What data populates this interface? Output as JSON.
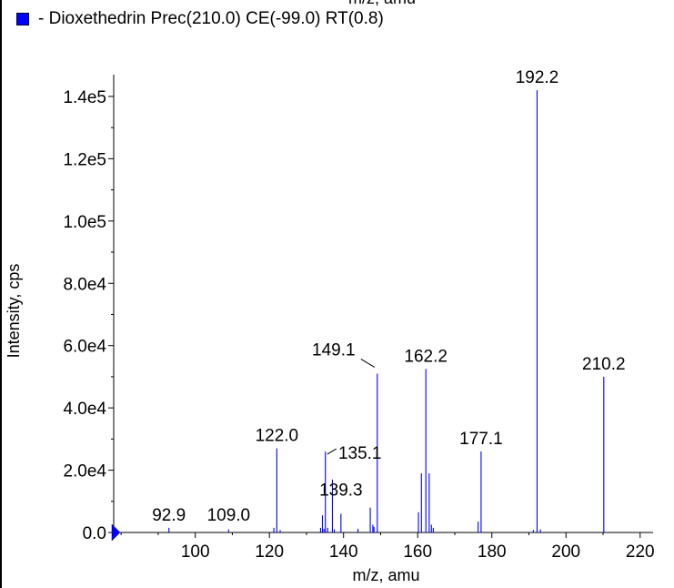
{
  "chart_data": {
    "type": "bar",
    "title": "",
    "legend": {
      "label": "- Dioxethedrin Prec(210.0) CE(-99.0) RT(0.8)",
      "color": "#0000ff",
      "placement": "top-left"
    },
    "xlabel": "m/z, amu",
    "xlabel_top_partial": "m/z, amu",
    "ylabel": "Intensity, cps",
    "xlim": [
      78,
      223
    ],
    "ylim": [
      0,
      147000
    ],
    "x_ticks": [
      100,
      120,
      140,
      160,
      180,
      200,
      220
    ],
    "x_tick_labels": [
      "100",
      "120",
      "140",
      "160",
      "180",
      "200",
      "220"
    ],
    "y_ticks": [
      0,
      20000,
      40000,
      60000,
      80000,
      100000,
      120000,
      140000
    ],
    "y_tick_labels": [
      "0.0",
      "2.0e4",
      "4.0e4",
      "6.0e4",
      "8.0e4",
      "1.0e5",
      "1.2e5",
      "1.4e5"
    ],
    "series": [
      {
        "color": "#0000ff",
        "peaks": [
          {
            "x": 92.9,
            "y": 1500
          },
          {
            "x": 109.0,
            "y": 1000
          },
          {
            "x": 121.2,
            "y": 1500
          },
          {
            "x": 122.0,
            "y": 27000
          },
          {
            "x": 122.9,
            "y": 800
          },
          {
            "x": 133.8,
            "y": 1500
          },
          {
            "x": 134.3,
            "y": 5500
          },
          {
            "x": 134.7,
            "y": 1200
          },
          {
            "x": 135.1,
            "y": 26000
          },
          {
            "x": 135.7,
            "y": 1500
          },
          {
            "x": 137.0,
            "y": 17000
          },
          {
            "x": 137.5,
            "y": 1000
          },
          {
            "x": 139.3,
            "y": 6000
          },
          {
            "x": 143.9,
            "y": 1200
          },
          {
            "x": 147.2,
            "y": 8000
          },
          {
            "x": 147.9,
            "y": 2500
          },
          {
            "x": 148.2,
            "y": 1800
          },
          {
            "x": 149.1,
            "y": 51000
          },
          {
            "x": 160.2,
            "y": 6500
          },
          {
            "x": 161.0,
            "y": 19000
          },
          {
            "x": 162.2,
            "y": 52500
          },
          {
            "x": 163.1,
            "y": 19000
          },
          {
            "x": 163.7,
            "y": 2500
          },
          {
            "x": 164.2,
            "y": 1500
          },
          {
            "x": 176.3,
            "y": 3500
          },
          {
            "x": 177.1,
            "y": 26000
          },
          {
            "x": 191.2,
            "y": 800
          },
          {
            "x": 192.2,
            "y": 142000
          },
          {
            "x": 193.1,
            "y": 1000
          },
          {
            "x": 210.2,
            "y": 50000
          }
        ]
      }
    ],
    "peak_labels": [
      {
        "text": "92.9",
        "x": 92.9
      },
      {
        "text": "109.0",
        "x": 109.0
      },
      {
        "text": "122.0",
        "x": 122.0
      },
      {
        "text": "135.1",
        "x": 135.1
      },
      {
        "text": "139.3",
        "x": 139.3
      },
      {
        "text": "149.1",
        "x": 149.1
      },
      {
        "text": "162.2",
        "x": 162.2
      },
      {
        "text": "177.1",
        "x": 177.1
      },
      {
        "text": "192.2",
        "x": 192.2
      },
      {
        "text": "210.2",
        "x": 210.2
      }
    ],
    "grid": false
  }
}
